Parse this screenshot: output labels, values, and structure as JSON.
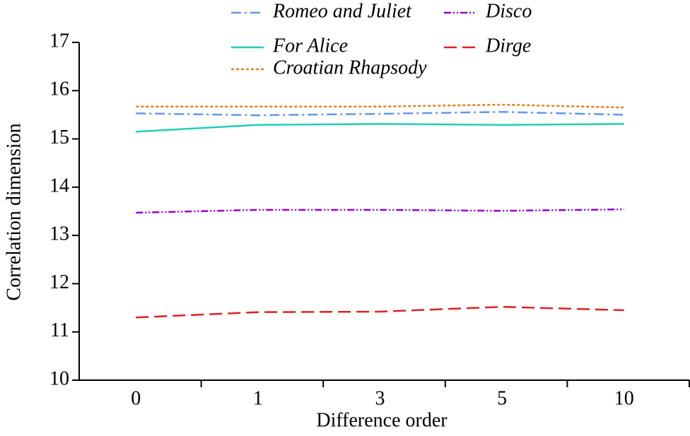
{
  "chart_data": {
    "type": "line",
    "x_label": "Difference order",
    "y_label": "Correlation dimension",
    "categories": [
      "0",
      "1",
      "3",
      "5",
      "10"
    ],
    "series": [
      {
        "name": "Romeo and Juliet",
        "color": "#6495ed",
        "dash": "14 5 3 5",
        "values": [
          15.53,
          15.49,
          15.52,
          15.56,
          15.5
        ]
      },
      {
        "name": "Disco",
        "color": "#9400d3",
        "dash": "10 3 2 3 2 3",
        "values": [
          13.47,
          13.53,
          13.53,
          13.51,
          13.54
        ]
      },
      {
        "name": "For Alice",
        "color": "#20d0b0",
        "dash": "none",
        "values": [
          15.15,
          15.29,
          15.31,
          15.29,
          15.31
        ]
      },
      {
        "name": "Dirge",
        "color": "#e02020",
        "dash": "18 8",
        "values": [
          11.3,
          11.41,
          11.42,
          11.52,
          11.45
        ]
      },
      {
        "name": "Croatian Rhapsody",
        "color": "#e87d1e",
        "dash": "4 3",
        "values": [
          15.67,
          15.67,
          15.67,
          15.71,
          15.65
        ]
      }
    ],
    "ylim": [
      10,
      17
    ],
    "yticks": [
      10,
      11,
      12,
      13,
      14,
      15,
      16,
      17
    ]
  }
}
